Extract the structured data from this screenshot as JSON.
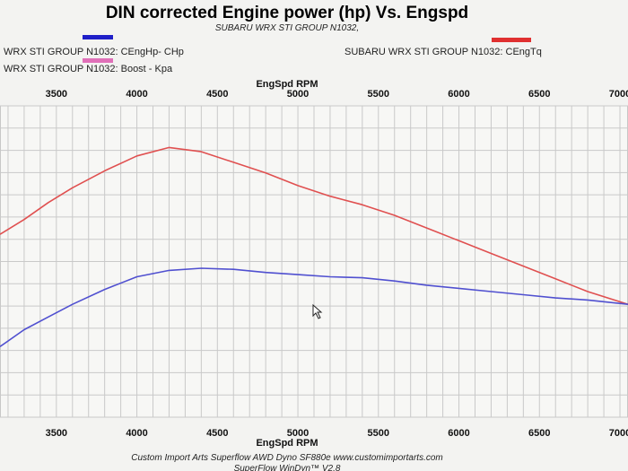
{
  "chart_data": {
    "type": "line",
    "title": "DIN corrected Engine power (hp) Vs. Engspd",
    "subtitle": "SUBARU WRX STI GROUP N1032,",
    "xlabel": "EngSpd  RPM",
    "xlabel_bottom": "EngSpd  RPM",
    "x_ticks": [
      "3500",
      "4000",
      "4500",
      "5000",
      "5500",
      "6000",
      "6500",
      "7000"
    ],
    "x_ticks_bottom": [
      "3500",
      "4000",
      "4500",
      "5000",
      "5500",
      "6000",
      "6500",
      "7000"
    ],
    "xlim": [
      3150,
      7050
    ],
    "ylim": [
      0,
      1
    ],
    "legend": [
      {
        "label": "WRX STI GROUP N1032: CEngHp-  CHp",
        "color": "#1f1fc8"
      },
      {
        "label": "SUBARU WRX STI GROUP N1032: CEngTq",
        "color": "#e03030"
      },
      {
        "label": "WRX STI GROUP N1032: Boost - Kpa",
        "color": "#e070b8"
      }
    ],
    "series": [
      {
        "color": "#e05050",
        "x": [
          3150,
          3300,
          3450,
          3600,
          3800,
          4000,
          4200,
          4400,
          4600,
          4800,
          5000,
          5200,
          5400,
          5600,
          5800,
          6000,
          6200,
          6400,
          6600,
          6800,
          7050
        ],
        "y": [
          0.63,
          0.7,
          0.78,
          0.85,
          0.93,
          1.0,
          1.04,
          1.02,
          0.97,
          0.92,
          0.86,
          0.81,
          0.77,
          0.72,
          0.66,
          0.6,
          0.54,
          0.48,
          0.42,
          0.36,
          0.3
        ]
      },
      {
        "color": "#5050d0",
        "x": [
          3150,
          3300,
          3450,
          3600,
          3800,
          4000,
          4200,
          4400,
          4600,
          4800,
          5000,
          5200,
          5400,
          5600,
          5800,
          6000,
          6200,
          6400,
          6600,
          6800,
          7050
        ],
        "y": [
          0.1,
          0.18,
          0.24,
          0.3,
          0.37,
          0.43,
          0.46,
          0.47,
          0.465,
          0.45,
          0.44,
          0.43,
          0.425,
          0.41,
          0.39,
          0.375,
          0.36,
          0.345,
          0.33,
          0.32,
          0.3
        ]
      }
    ]
  },
  "footer": {
    "line1": "Custom Import Arts   Superflow AWD Dyno SF880e   www.customimportarts.com",
    "line2": "SuperFlow WinDyn™ V2.8"
  }
}
